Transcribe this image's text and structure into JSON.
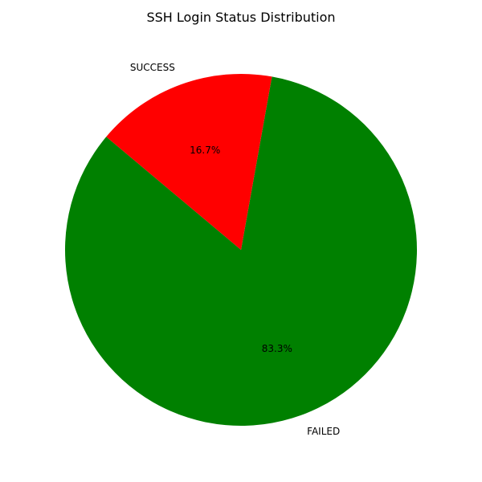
{
  "chart_data": {
    "type": "pie",
    "title": "SSH Login Status Distribution",
    "slices": [
      {
        "label": "FAILED",
        "percent": 83.3,
        "percent_label": "83.3%",
        "color": "#008000"
      },
      {
        "label": "SUCCESS",
        "percent": 16.7,
        "percent_label": "16.7%",
        "color": "#ff0000"
      }
    ],
    "start_angle_deg": 140,
    "direction": "counterclockwise",
    "legend": "none"
  }
}
